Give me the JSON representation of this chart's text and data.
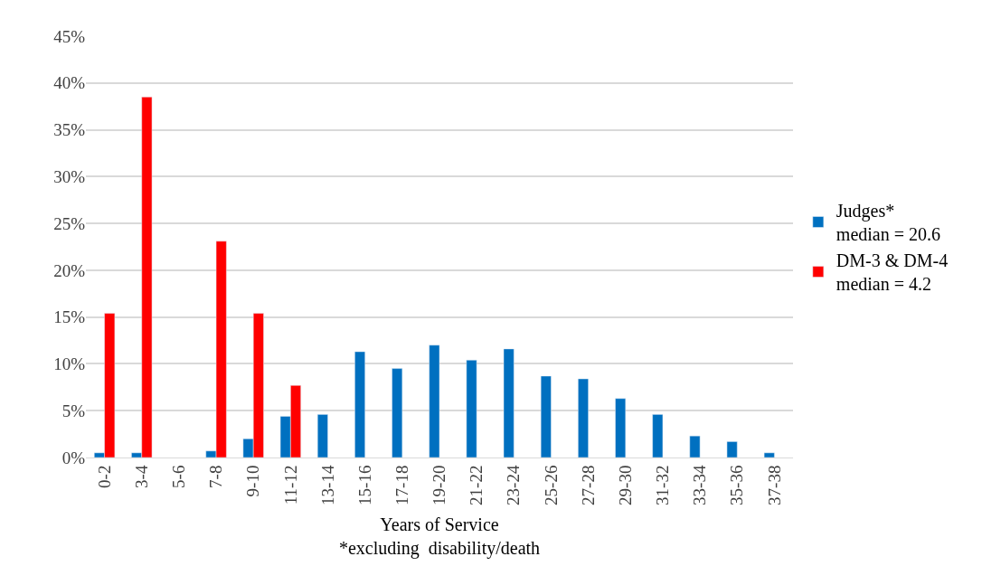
{
  "chart_data": {
    "type": "bar",
    "xlabel": "Years of Service\n*excluding  disability/death",
    "categories": [
      "0-2",
      "3-4",
      "5-6",
      "7-8",
      "9-10",
      "11-12",
      "13-14",
      "15-16",
      "17-18",
      "19-20",
      "21-22",
      "23-24",
      "25-26",
      "27-28",
      "29-30",
      "31-32",
      "33-34",
      "35-36",
      "37-38"
    ],
    "series": [
      {
        "name": "Judges*\nmedian = 20.6",
        "color": "#0070c0",
        "values": [
          0.5,
          0.5,
          null,
          0.7,
          2.0,
          4.4,
          4.6,
          11.3,
          9.5,
          12.0,
          10.4,
          11.6,
          8.7,
          8.4,
          6.3,
          4.6,
          2.3,
          1.7,
          0.5
        ]
      },
      {
        "name": "DM-3 & DM-4\nmedian = 4.2",
        "color": "#ff0000",
        "values": [
          15.4,
          38.5,
          null,
          23.1,
          15.4,
          7.7,
          null,
          null,
          null,
          null,
          null,
          null,
          null,
          null,
          null,
          null,
          null,
          null,
          null
        ]
      }
    ],
    "ylim": [
      0,
      45
    ],
    "yticks": [
      {
        "value": 0,
        "label": "0%"
      },
      {
        "value": 5,
        "label": "5%"
      },
      {
        "value": 10,
        "label": "10%"
      },
      {
        "value": 15,
        "label": "15%"
      },
      {
        "value": 20,
        "label": "20%"
      },
      {
        "value": 25,
        "label": "25%"
      },
      {
        "value": 30,
        "label": "30%"
      },
      {
        "value": 35,
        "label": "35%"
      },
      {
        "value": 40,
        "label": "40%"
      },
      {
        "value": 45,
        "label": "45%"
      }
    ],
    "grid": "y",
    "legend": "right"
  }
}
